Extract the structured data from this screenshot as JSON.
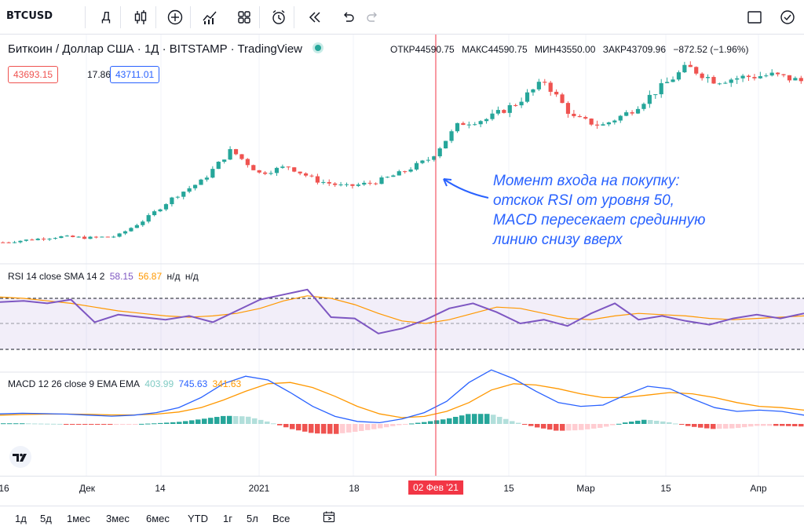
{
  "toolbar": {
    "symbol": "BTCUSD",
    "interval_label": "Д",
    "icons": [
      "candles-icon",
      "add-indicator-icon",
      "indicators-icon",
      "templates-icon",
      "alert-icon",
      "replay-icon",
      "undo-icon",
      "redo-icon",
      "layout-icon",
      "snapshot-icon"
    ]
  },
  "header": {
    "title": "Биткоин / Доллар США · 1Д · BITSTAMP · TradingView",
    "status_color": "#26a69a",
    "ohlc": [
      {
        "label": "ОТКР",
        "value": "44590.75"
      },
      {
        "label": "МАКС",
        "value": "44590.75"
      },
      {
        "label": "МИН",
        "value": "43550.00"
      },
      {
        "label": "ЗАКР",
        "value": "43709.96"
      },
      {
        "label": "",
        "value": "−872.52 (−1.96%)"
      }
    ],
    "bid": "43693.15",
    "spread": "17.86",
    "ask": "43711.01"
  },
  "annotation": {
    "lines": [
      "Момент входа на покупку:",
      "отскок RSI от уровня 50,",
      "MACD пересекает срединную",
      "линию снизу вверх"
    ],
    "color": "#2962ff"
  },
  "rsi_legend": {
    "name": "RSI 14 close SMA 14 2",
    "v1": "58.15",
    "v2": "56.87",
    "v3": "н/д",
    "v4": "н/д"
  },
  "macd_legend": {
    "name": "MACD 12 26 close 9 EMA EMA",
    "v1": "403.99",
    "v2": "745.63",
    "v3": "341.63"
  },
  "time_axis": {
    "labels": [
      "16",
      "Дек",
      "14",
      "2021",
      "18",
      "02 Фев '21",
      "15",
      "Мар",
      "15",
      "Апр"
    ],
    "highlighted": "02 Фев '21"
  },
  "ranges": [
    "1д",
    "5д",
    "1мес",
    "3мес",
    "6мес",
    "YTD",
    "1г",
    "5л",
    "Все"
  ],
  "colors": {
    "up": "#26a69a",
    "down": "#ef5350",
    "rsi": "#7e57c2",
    "rsi_ma": "#ff9800",
    "macd": "#2962ff",
    "signal": "#ff9800",
    "crosshair": "#f23645"
  },
  "chart_data": [
    {
      "type": "candlestick",
      "title": "Биткоин / Доллар США · 1Д · BITSTAMP",
      "x_range": [
        "2020-11-16",
        "2021-04-06"
      ],
      "trend": [
        17800,
        18500,
        19200,
        18900,
        19300,
        23500,
        29000,
        33000,
        40500,
        34800,
        36500,
        33000,
        31500,
        32500,
        35000,
        38500,
        47000,
        48200,
        52000,
        57500,
        48500,
        46500,
        50000,
        55500,
        61000,
        57500,
        58500,
        59000,
        57500
      ]
    },
    {
      "type": "line",
      "title": "RSI 14 close SMA 14 2",
      "ylim": [
        0,
        100
      ],
      "levels": [
        70,
        50,
        30
      ],
      "series": [
        {
          "name": "RSI",
          "values": [
            67,
            68,
            66,
            69,
            51,
            57,
            55,
            53,
            56,
            51,
            60,
            69,
            73,
            77,
            55,
            54,
            42,
            46,
            53,
            62,
            66,
            59,
            50,
            53,
            48,
            58,
            66,
            53,
            56,
            52,
            49,
            54,
            57,
            54,
            58
          ]
        },
        {
          "name": "SMA",
          "values": [
            71,
            70,
            68,
            66,
            63,
            60,
            58,
            56,
            55,
            56,
            58,
            62,
            68,
            72,
            70,
            65,
            58,
            52,
            50,
            53,
            58,
            63,
            62,
            58,
            54,
            53,
            56,
            58,
            57,
            56,
            54,
            53,
            54,
            55,
            56
          ]
        }
      ]
    },
    {
      "type": "line",
      "title": "MACD 12 26 close 9 EMA EMA",
      "series": [
        {
          "name": "MACD",
          "values": [
            800,
            850,
            820,
            780,
            700,
            620,
            700,
            900,
            1300,
            2100,
            3200,
            3800,
            3500,
            2500,
            1400,
            600,
            200,
            100,
            400,
            900,
            1800,
            3300,
            4300,
            3600,
            2600,
            1700,
            1400,
            1500,
            2300,
            3000,
            2800,
            2000,
            1300,
            1000,
            1100,
            1000,
            700
          ]
        },
        {
          "name": "Signal",
          "values": [
            700,
            750,
            780,
            790,
            760,
            720,
            720,
            780,
            950,
            1300,
            1900,
            2600,
            3200,
            3300,
            2900,
            2200,
            1400,
            800,
            500,
            600,
            1000,
            1700,
            2700,
            3200,
            3100,
            2800,
            2400,
            2100,
            2100,
            2300,
            2500,
            2400,
            2100,
            1700,
            1400,
            1300,
            1100
          ]
        }
      ]
    }
  ]
}
